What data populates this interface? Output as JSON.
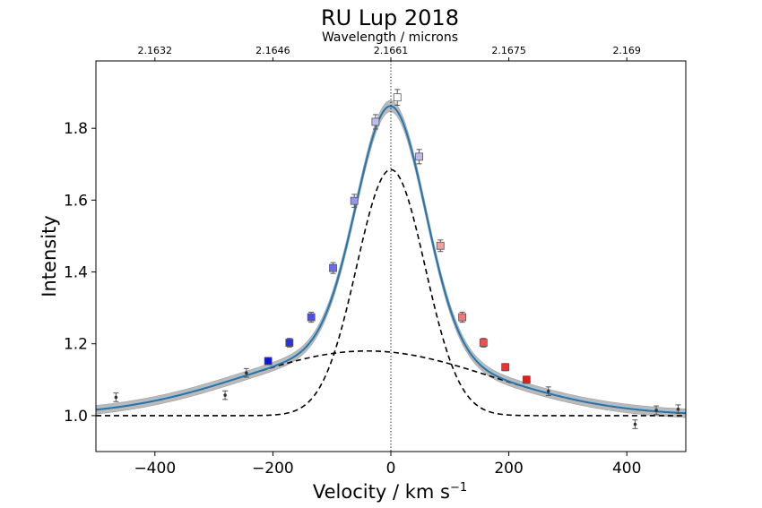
{
  "chart_data": {
    "type": "line",
    "title": "RU Lup 2018",
    "top_axis_label": "Wavelength / microns",
    "top_ticks": [
      "2.1632",
      "2.1646",
      "2.1661",
      "2.1675",
      "2.169"
    ],
    "top_tick_velocities": [
      -400,
      -200,
      0,
      200,
      400
    ],
    "xlabel_main": "Velocity / km s",
    "xlabel_sup": "−1",
    "ylabel": "Intensity",
    "xlim": [
      -500,
      500
    ],
    "ylim": [
      0.9,
      1.9875
    ],
    "x_ticks": [
      -400,
      -200,
      0,
      200,
      400
    ],
    "x_tick_labels": [
      "−400",
      "−200",
      "0",
      "200",
      "400"
    ],
    "y_ticks": [
      1.0,
      1.2,
      1.4,
      1.6,
      1.8
    ],
    "y_tick_labels": [
      "1.0",
      "1.2",
      "1.4",
      "1.6",
      "1.8"
    ],
    "model": {
      "continuum": 1.0,
      "narrow": {
        "amplitude": 0.685,
        "center": 0,
        "sigma": 58
      },
      "broad": {
        "amplitude": 0.18,
        "center": -40,
        "sigma": 210
      },
      "band_halfwidth": 0.012,
      "line_color": "#1f77b4",
      "band_color": "#aaaaaa",
      "component_color": "#000000"
    },
    "points": [
      {
        "x": -466,
        "y": 1.051,
        "err": 0.012,
        "marker": "dot",
        "color": "#333333"
      },
      {
        "x": -281,
        "y": 1.057,
        "err": 0.012,
        "marker": "dot",
        "color": "#333333"
      },
      {
        "x": -245,
        "y": 1.119,
        "err": 0.012,
        "marker": "dot",
        "color": "#333333"
      },
      {
        "x": -208,
        "y": 1.152,
        "err": 0.01,
        "marker": "square",
        "color": "#0a14e6"
      },
      {
        "x": -172,
        "y": 1.203,
        "err": 0.012,
        "marker": "square",
        "color": "#2a32e8"
      },
      {
        "x": -135,
        "y": 1.274,
        "err": 0.014,
        "marker": "square",
        "color": "#4a50ea"
      },
      {
        "x": -98,
        "y": 1.411,
        "err": 0.015,
        "marker": "square",
        "color": "#6a6eec"
      },
      {
        "x": -62,
        "y": 1.598,
        "err": 0.018,
        "marker": "square",
        "color": "#9496ee"
      },
      {
        "x": -26,
        "y": 1.818,
        "err": 0.02,
        "marker": "square",
        "color": "#bcbdf4"
      },
      {
        "x": 11,
        "y": 1.886,
        "err": 0.022,
        "marker": "square",
        "color": "#ffffff"
      },
      {
        "x": 48,
        "y": 1.721,
        "err": 0.02,
        "marker": "square",
        "color": "#c0b8e8"
      },
      {
        "x": 84,
        "y": 1.473,
        "err": 0.016,
        "marker": "square",
        "color": "#f0a0a0"
      },
      {
        "x": 121,
        "y": 1.274,
        "err": 0.014,
        "marker": "square",
        "color": "#f27878"
      },
      {
        "x": 157,
        "y": 1.203,
        "err": 0.012,
        "marker": "square",
        "color": "#f25050"
      },
      {
        "x": 194,
        "y": 1.135,
        "err": 0.01,
        "marker": "square",
        "color": "#f23030"
      },
      {
        "x": 230,
        "y": 1.1,
        "err": 0.01,
        "marker": "square",
        "color": "#e81a1a"
      },
      {
        "x": 267,
        "y": 1.068,
        "err": 0.012,
        "marker": "dot",
        "color": "#333333"
      },
      {
        "x": 414,
        "y": 0.976,
        "err": 0.012,
        "marker": "dot",
        "color": "#333333"
      },
      {
        "x": 450,
        "y": 1.015,
        "err": 0.012,
        "marker": "dot",
        "color": "#333333"
      },
      {
        "x": 487,
        "y": 1.018,
        "err": 0.012,
        "marker": "dot",
        "color": "#333333"
      }
    ]
  }
}
